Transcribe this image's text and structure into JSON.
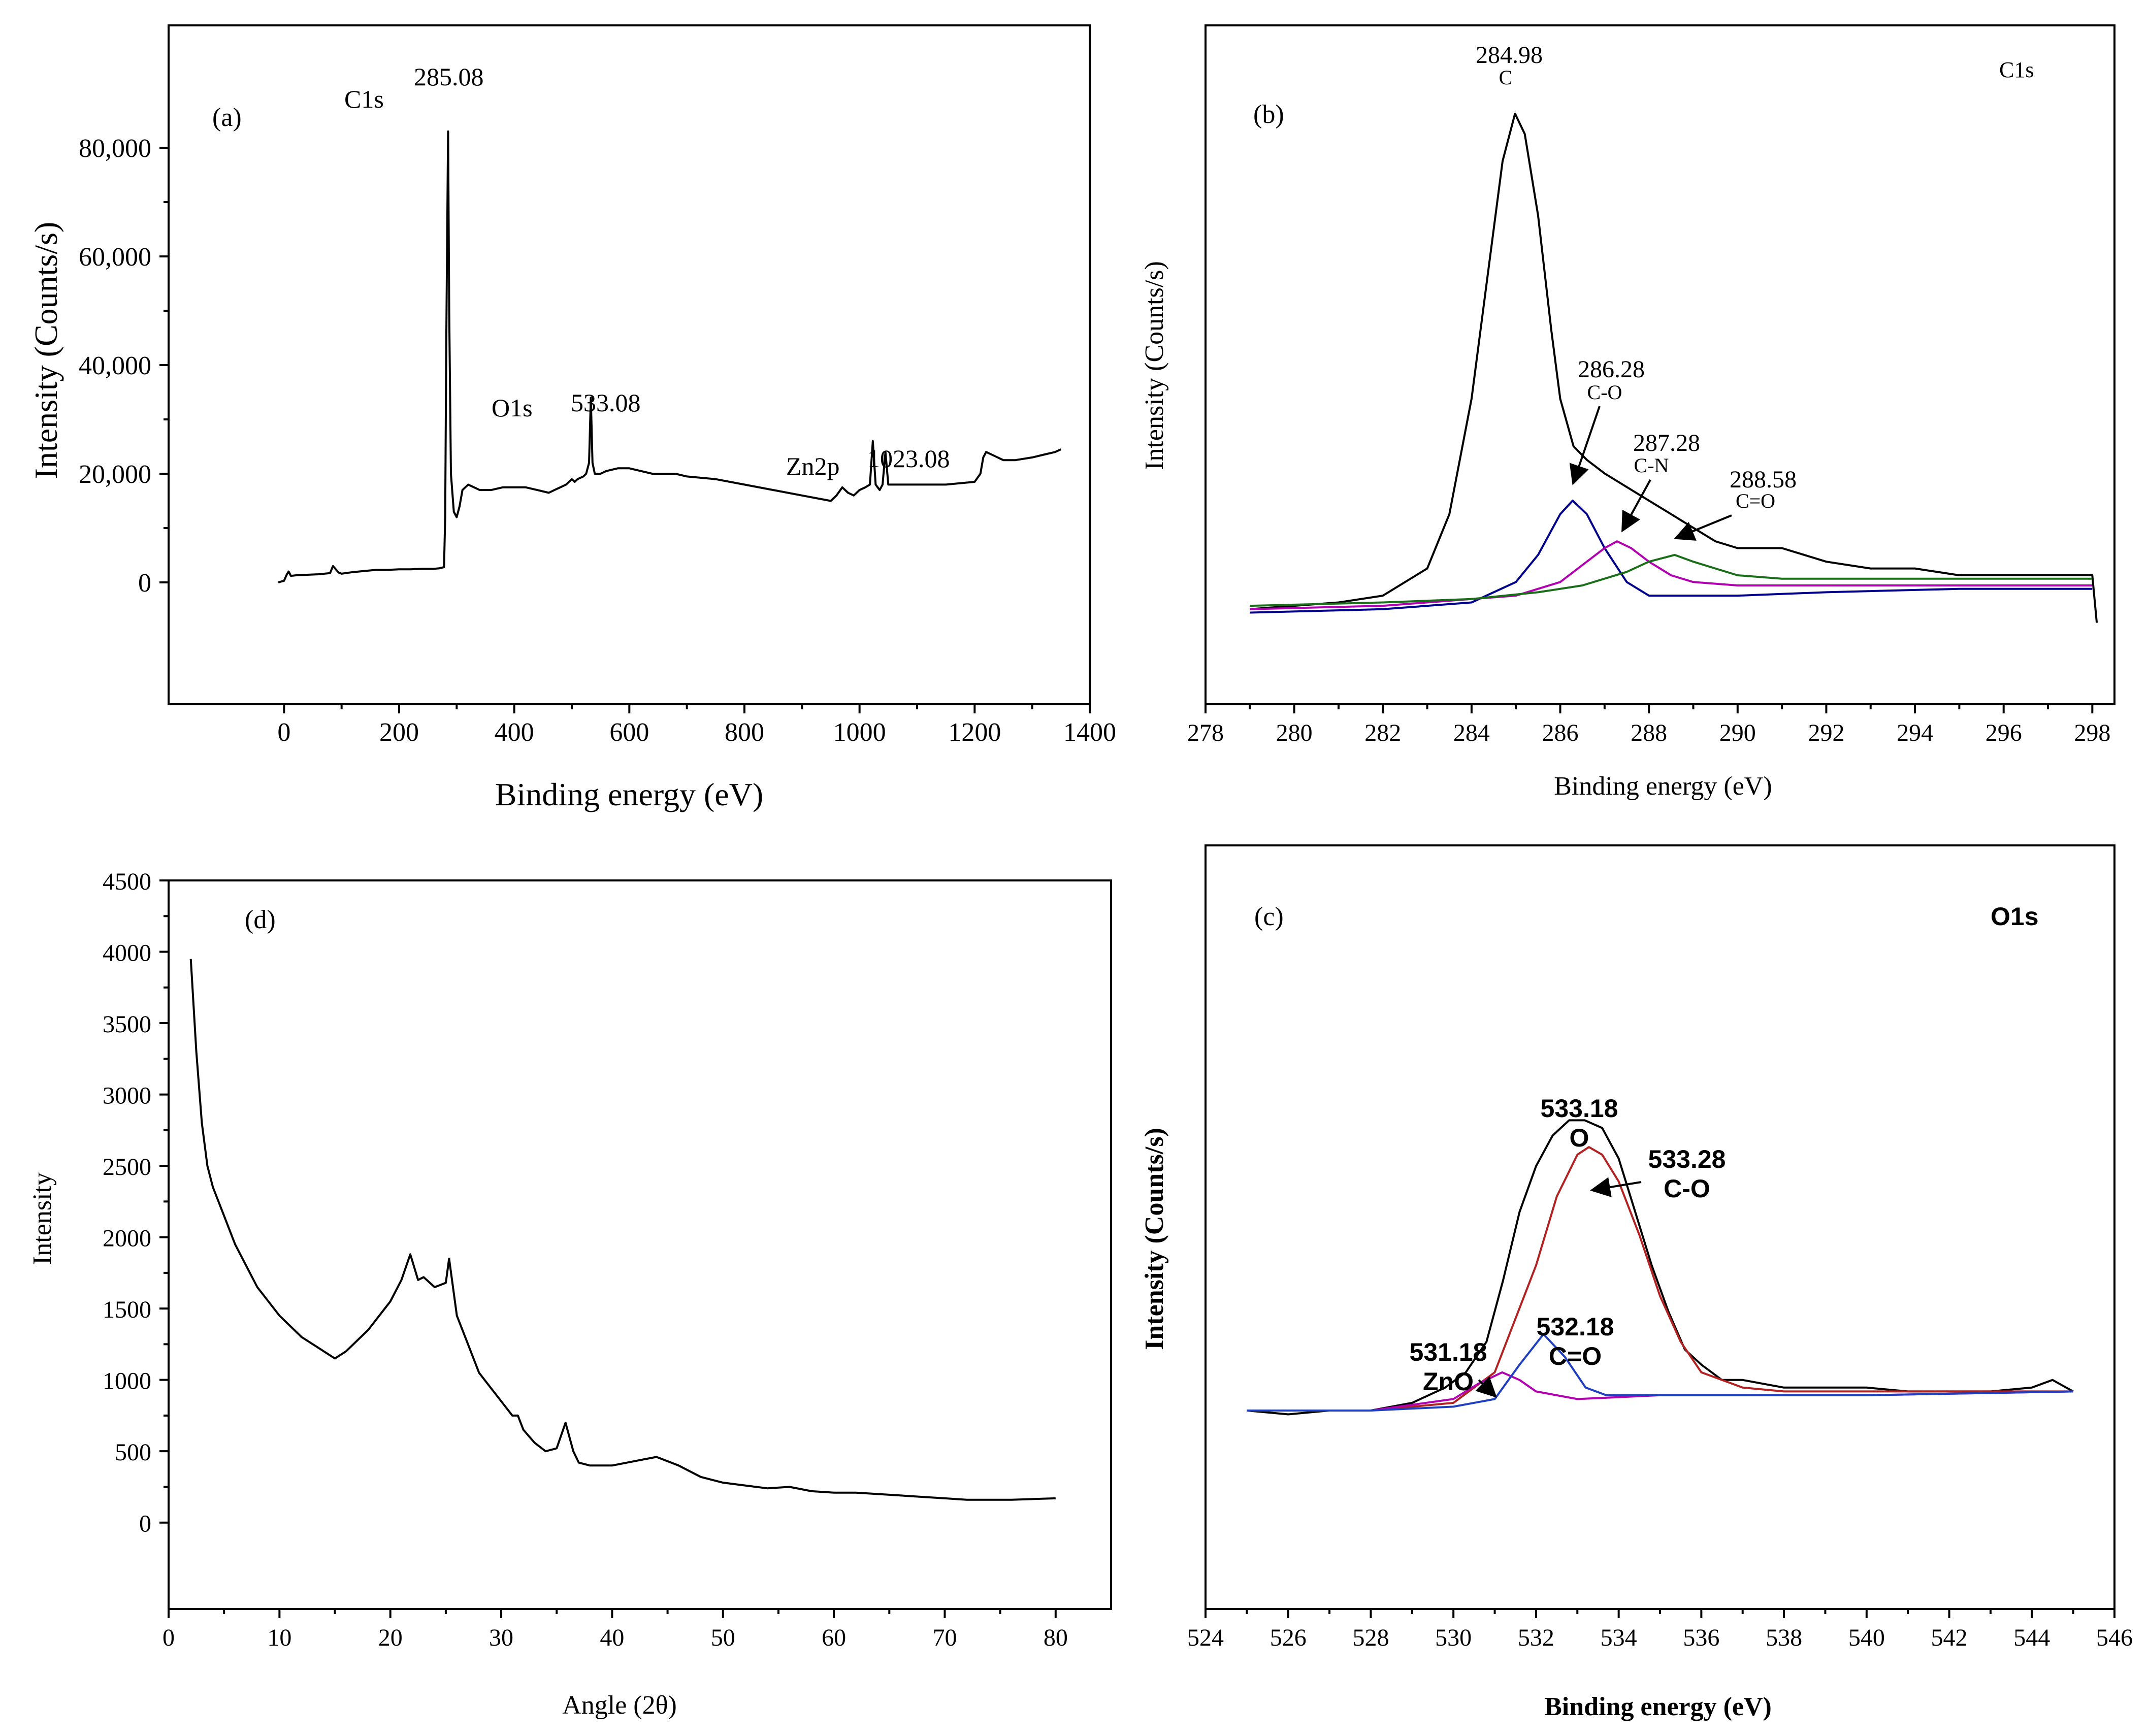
{
  "chart_data": [
    {
      "panel": "(a)",
      "type": "line",
      "xlabel": "Binding energy (eV)",
      "ylabel": "Intensity (Counts/s)",
      "xlim": [
        -100,
        1400
      ],
      "ylim": [
        -10000,
        90000
      ],
      "xticks": [
        0,
        200,
        400,
        600,
        800,
        1000,
        1200,
        1400
      ],
      "yticks": [
        0,
        20000,
        40000,
        60000,
        80000
      ],
      "ytick_labels": [
        "0",
        "20,000",
        "40,000",
        "60,000",
        "80,000"
      ],
      "series": [
        {
          "color": "#000000",
          "x": [
            -10,
            0,
            5,
            8,
            12,
            20,
            40,
            60,
            80,
            85,
            90,
            95,
            100,
            120,
            140,
            160,
            180,
            200,
            220,
            240,
            260,
            270,
            278,
            280,
            282,
            284,
            285.08,
            287,
            290,
            295,
            300,
            305,
            310,
            320,
            340,
            360,
            380,
            400,
            420,
            440,
            460,
            470,
            480,
            490,
            500,
            505,
            510,
            520,
            525,
            530,
            533.08,
            536,
            540,
            550,
            560,
            580,
            600,
            620,
            640,
            660,
            680,
            700,
            750,
            800,
            850,
            900,
            950,
            960,
            970,
            980,
            990,
            1000,
            1010,
            1018,
            1023.08,
            1028,
            1035,
            1040,
            1045,
            1050,
            1060,
            1080,
            1100,
            1150,
            1200,
            1210,
            1215,
            1220,
            1230,
            1250,
            1270,
            1300,
            1320,
            1340,
            1350
          ],
          "y": [
            0,
            300,
            1500,
            2000,
            1200,
            1300,
            1400,
            1500,
            1700,
            3000,
            2400,
            1800,
            1600,
            1900,
            2100,
            2300,
            2300,
            2400,
            2400,
            2500,
            2500,
            2600,
            2800,
            12000,
            45000,
            70000,
            83000,
            50000,
            20000,
            13000,
            12000,
            14000,
            17000,
            18000,
            17000,
            17000,
            17500,
            17500,
            17500,
            17000,
            16500,
            17000,
            17500,
            18000,
            19000,
            18500,
            19000,
            19500,
            20000,
            22000,
            34000,
            22000,
            20000,
            20000,
            20500,
            21000,
            21000,
            20500,
            20000,
            20000,
            20000,
            19500,
            19000,
            18000,
            17000,
            16000,
            15000,
            16000,
            17500,
            16500,
            16000,
            17000,
            17500,
            18000,
            26000,
            18000,
            17000,
            18000,
            24000,
            18000,
            18000,
            18000,
            18000,
            18000,
            18500,
            20000,
            23000,
            24000,
            23500,
            22500,
            22500,
            23000,
            23500,
            24000,
            24500
          ]
        }
      ],
      "annotations": [
        {
          "text": "C1s",
          "x": 285.08,
          "y": 83000
        },
        {
          "text": "285.08",
          "x": 285.08,
          "y": 83000
        },
        {
          "text": "O1s",
          "x": 533.08,
          "y": 34000
        },
        {
          "text": "533.08",
          "x": 533.08,
          "y": 34000
        },
        {
          "text": "Zn2p",
          "x": 1023.08,
          "y": 26000
        },
        {
          "text": "1023.08",
          "x": 1023.08,
          "y": 26000
        }
      ]
    },
    {
      "panel": "(b)",
      "type": "line",
      "title": "C1s",
      "xlabel": "Binding energy (eV)",
      "ylabel": "Intensity (Counts/s)",
      "xlim": [
        278,
        298.5
      ],
      "ylim": [
        0,
        100
      ],
      "xticks": [
        278,
        280,
        282,
        284,
        286,
        288,
        290,
        292,
        294,
        296,
        298
      ],
      "series": [
        {
          "color": "#000000",
          "x": [
            279.0,
            280.0,
            281.0,
            282.0,
            283.0,
            283.5,
            284.0,
            284.4,
            284.7,
            284.98,
            285.2,
            285.5,
            285.8,
            286.0,
            286.3,
            286.6,
            287.0,
            287.5,
            288.0,
            288.5,
            289.0,
            289.5,
            290.0,
            291.0,
            292.0,
            293.0,
            294.0,
            295.0,
            296.0,
            297.0,
            298.0,
            298.1
          ],
          "y": [
            14,
            14.5,
            15,
            16,
            20,
            28,
            45,
            65,
            80,
            87,
            84,
            72,
            55,
            45,
            38,
            36,
            34,
            32,
            30,
            28,
            26,
            24,
            23,
            23,
            21,
            20,
            20,
            19,
            19,
            19,
            19,
            12
          ]
        },
        {
          "color": "#00008b",
          "x": [
            279.0,
            282.0,
            284.0,
            285.0,
            285.5,
            286.0,
            286.28,
            286.6,
            287.0,
            287.5,
            288.0,
            290.0,
            292.0,
            295.0,
            298.0
          ],
          "y": [
            13.5,
            14,
            15,
            18,
            22,
            28,
            30,
            28,
            23,
            18,
            16,
            16,
            16.5,
            17,
            17
          ]
        },
        {
          "color": "#b000b0",
          "x": [
            279.0,
            282.0,
            285.0,
            286.0,
            286.6,
            287.0,
            287.28,
            287.6,
            288.0,
            288.5,
            289.0,
            290.0,
            292.0,
            295.0,
            298.0
          ],
          "y": [
            14,
            14.5,
            16,
            18,
            21,
            23,
            24,
            23,
            21,
            19,
            18,
            17.5,
            17.5,
            17.5,
            17.5
          ]
        },
        {
          "color": "#1a6e1a",
          "x": [
            279.0,
            282.0,
            284.0,
            285.5,
            286.5,
            287.5,
            288.0,
            288.58,
            289.0,
            289.5,
            290.0,
            291.0,
            292.0,
            295.0,
            298.0
          ],
          "y": [
            14.5,
            15,
            15.5,
            16.5,
            17.5,
            19.5,
            21,
            22,
            21,
            20,
            19,
            18.5,
            18.5,
            18.5,
            18.5
          ]
        }
      ],
      "annotations": [
        {
          "text": "284.98",
          "x": 284.98,
          "y": 87
        },
        {
          "text": "C",
          "x": 284.98,
          "y": 87
        },
        {
          "text": "286.28",
          "x": 286.28,
          "y": 30
        },
        {
          "text": "C-O",
          "x": 286.28,
          "y": 30
        },
        {
          "text": "287.28",
          "x": 287.28,
          "y": 24
        },
        {
          "text": "C-N",
          "x": 287.28,
          "y": 24
        },
        {
          "text": "288.58",
          "x": 288.58,
          "y": 22
        },
        {
          "text": "C=O",
          "x": 288.58,
          "y": 22
        }
      ]
    },
    {
      "panel": "(d)",
      "type": "line",
      "xlabel": "Angle (2θ)",
      "ylabel": "Intensity",
      "xlim": [
        0,
        85
      ],
      "ylim": [
        -300,
        4500
      ],
      "xticks": [
        0,
        10,
        20,
        30,
        40,
        50,
        60,
        70,
        80
      ],
      "yticks": [
        0,
        500,
        1000,
        1500,
        2000,
        2500,
        3000,
        3500,
        4000,
        4500
      ],
      "series": [
        {
          "color": "#000000",
          "x": [
            2,
            2.5,
            3,
            3.5,
            4,
            5,
            6,
            7,
            8,
            10,
            12,
            14,
            15,
            16,
            18,
            20,
            21,
            21.8,
            22.5,
            23,
            24,
            25,
            25.3,
            26,
            27,
            28,
            29,
            30,
            31,
            31.5,
            32,
            33,
            34,
            35,
            35.8,
            36.5,
            37,
            38,
            40,
            42,
            44,
            46,
            48,
            50,
            52,
            54,
            56,
            58,
            60,
            62,
            64,
            66,
            68,
            70,
            72,
            74,
            76,
            78,
            80
          ],
          "y": [
            3950,
            3300,
            2800,
            2500,
            2350,
            2150,
            1950,
            1800,
            1650,
            1450,
            1300,
            1200,
            1150,
            1200,
            1350,
            1550,
            1700,
            1880,
            1700,
            1720,
            1650,
            1680,
            1850,
            1450,
            1250,
            1050,
            950,
            850,
            750,
            750,
            650,
            560,
            500,
            520,
            700,
            500,
            420,
            400,
            400,
            430,
            460,
            400,
            320,
            280,
            260,
            240,
            250,
            220,
            210,
            210,
            200,
            190,
            180,
            170,
            160,
            160,
            160,
            165,
            170
          ]
        }
      ]
    },
    {
      "panel": "(c)",
      "type": "line",
      "title": "O1s",
      "xlabel": "Binding energy (eV)",
      "ylabel": "Intensity (Counts/s)",
      "xlim": [
        524,
        546
      ],
      "ylim": [
        0,
        100
      ],
      "xticks": [
        524,
        526,
        528,
        530,
        532,
        534,
        536,
        538,
        540,
        542,
        544,
        546
      ],
      "series": [
        {
          "color": "#000000",
          "x": [
            525.0,
            526.0,
            527.0,
            528.0,
            529.0,
            529.8,
            530.3,
            530.8,
            531.2,
            531.6,
            532.0,
            532.4,
            532.8,
            533.18,
            533.6,
            534.0,
            534.4,
            534.8,
            535.2,
            535.6,
            536.0,
            536.5,
            537.0,
            538.0,
            539.0,
            540.0,
            541.0,
            542.0,
            543.0,
            544.0,
            544.5,
            545.0
          ],
          "y": [
            26,
            25.5,
            26,
            26,
            27,
            29,
            31,
            35,
            43,
            52,
            58,
            62,
            64,
            64,
            63,
            59,
            52,
            45,
            39,
            34,
            32,
            30,
            30,
            29,
            29,
            29,
            28.5,
            28.5,
            28.5,
            29,
            30,
            28.5
          ]
        },
        {
          "color": "#b22222",
          "x": [
            525.0,
            528.0,
            530.0,
            531.0,
            532.0,
            532.5,
            533.0,
            533.28,
            533.6,
            534.0,
            534.5,
            535.0,
            535.5,
            536.0,
            537.0,
            538.0,
            540.0,
            542.0,
            545.0
          ],
          "y": [
            26,
            26,
            27,
            31,
            45,
            54,
            59.5,
            60.5,
            59.5,
            56,
            49,
            41,
            35,
            31,
            29,
            28.5,
            28.5,
            28.5,
            28.5
          ]
        },
        {
          "color": "#b000b0",
          "x": [
            525.0,
            528.0,
            530.0,
            530.6,
            531.18,
            531.6,
            532.0,
            533.0,
            535.0,
            540.0,
            545.0
          ],
          "y": [
            26,
            26,
            27.5,
            29.5,
            31,
            30,
            28.5,
            27.5,
            28,
            28,
            28.5
          ]
        },
        {
          "color": "#1f3fbf",
          "x": [
            525.0,
            528.0,
            530.0,
            531.0,
            531.6,
            532.18,
            532.7,
            533.2,
            533.7,
            534.5,
            536.0,
            540.0,
            545.0
          ],
          "y": [
            26,
            26,
            26.5,
            27.5,
            32,
            36,
            33,
            29,
            28,
            28,
            28,
            28,
            28.5
          ]
        }
      ],
      "annotations": [
        {
          "text": "533.18",
          "x": 533.18,
          "y": 64
        },
        {
          "text": "O",
          "x": 533.18,
          "y": 64
        },
        {
          "text": "533.28",
          "x": 533.28,
          "y": 60.5
        },
        {
          "text": "C-O",
          "x": 533.28,
          "y": 60.5
        },
        {
          "text": "531.18",
          "x": 531.18,
          "y": 31
        },
        {
          "text": "ZnO",
          "x": 531.18,
          "y": 31
        },
        {
          "text": "532.18",
          "x": 532.18,
          "y": 36
        },
        {
          "text": "C=O",
          "x": 532.18,
          "y": 36
        }
      ]
    }
  ]
}
